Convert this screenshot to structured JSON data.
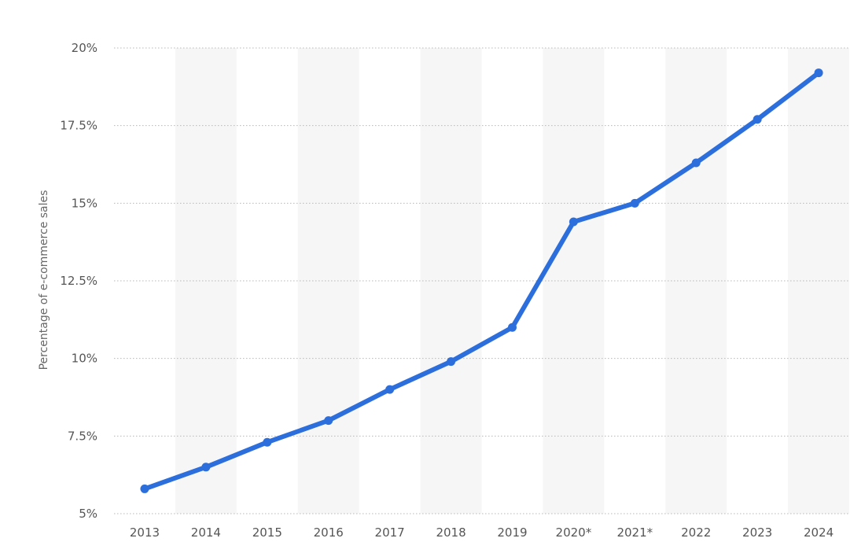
{
  "chart_data": {
    "type": "line",
    "title": "",
    "xlabel": "",
    "ylabel": "Percentage of e-commerce sales",
    "categories": [
      "2013",
      "2014",
      "2015",
      "2016",
      "2017",
      "2018",
      "2019",
      "2020*",
      "2021*",
      "2022",
      "2023",
      "2024"
    ],
    "series": [
      {
        "values": [
          5.8,
          6.5,
          7.3,
          8.0,
          9.0,
          9.9,
          11.0,
          14.4,
          15.0,
          16.3,
          17.7,
          19.2
        ]
      }
    ],
    "ylim": [
      5,
      20
    ],
    "yticks": [
      {
        "value": 20,
        "label": "20%"
      },
      {
        "value": 17.5,
        "label": "17.5%"
      },
      {
        "value": 15,
        "label": "15%"
      },
      {
        "value": 12.5,
        "label": "12.5%"
      },
      {
        "value": 10,
        "label": "10%"
      },
      {
        "value": 7.5,
        "label": "7.5%"
      },
      {
        "value": 5,
        "label": "5%"
      }
    ],
    "grid": true,
    "alternating_column_bands": true,
    "legend": "none"
  },
  "colors": {
    "series": "#2c6fdc",
    "band": "#f6f6f6",
    "grid": "#b8b8b8",
    "text": "#555555"
  }
}
